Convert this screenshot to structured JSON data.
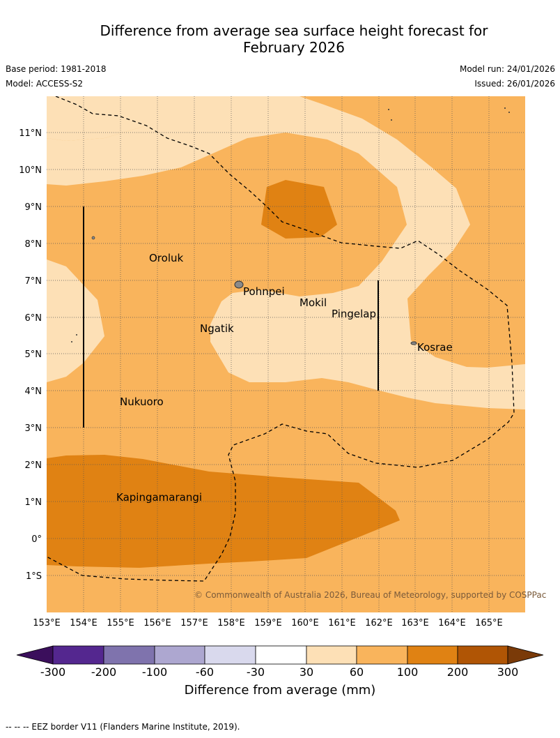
{
  "title": {
    "line1": "Difference from average sea surface height forecast for",
    "line2": "February 2026"
  },
  "meta": {
    "base_period": "Base period: 1981-2018",
    "model": "Model: ACCESS-S2",
    "model_run": "Model run: 24/01/2026",
    "issued": "Issued: 26/01/2026"
  },
  "map": {
    "lat_labels": [
      "11°N",
      "10°N",
      "9°N",
      "8°N",
      "7°N",
      "6°N",
      "5°N",
      "4°N",
      "3°N",
      "2°N",
      "1°N",
      "0°",
      "1°S"
    ],
    "lon_labels": [
      "153°E",
      "154°E",
      "155°E",
      "156°E",
      "157°E",
      "158°E",
      "159°E",
      "160°E",
      "161°E",
      "162°E",
      "163°E",
      "164°E",
      "165°E"
    ],
    "places": [
      {
        "name": "Oroluk",
        "lon": 155.8,
        "lat": 7.6
      },
      {
        "name": "Pohnpei",
        "lon": 158.2,
        "lat": 6.9
      },
      {
        "name": "Mokil",
        "lon": 159.8,
        "lat": 6.6
      },
      {
        "name": "Pingelap",
        "lon": 160.7,
        "lat": 6.2
      },
      {
        "name": "Kosrae",
        "lon": 162.9,
        "lat": 5.3
      },
      {
        "name": "Ngatik",
        "lon": 157.1,
        "lat": 5.8
      },
      {
        "name": "Nukuoro",
        "lon": 154.9,
        "lat": 3.8
      },
      {
        "name": "Kapingamarangi",
        "lon": 154.8,
        "lat": 1.1
      }
    ],
    "copyright": "© Commonwealth of Australia 2026, Bureau of Meteorology, supported by COSPPac"
  },
  "colorbar": {
    "ticks": [
      "-300",
      "-200",
      "-100",
      "-60",
      "-30",
      "30",
      "60",
      "100",
      "200",
      "300"
    ],
    "colors": [
      "#3b0f5c",
      "#54278f",
      "#7f73ad",
      "#ada7d0",
      "#d9d9ed",
      "#ffffff",
      "#fde0b6",
      "#f9b45c",
      "#e08213",
      "#b05505",
      "#7a3a08"
    ],
    "label": "Difference from average (mm)"
  },
  "legend": {
    "eez": "--  --  -- EEZ border V11 (Flanders Marine Institute, 2019)."
  }
}
